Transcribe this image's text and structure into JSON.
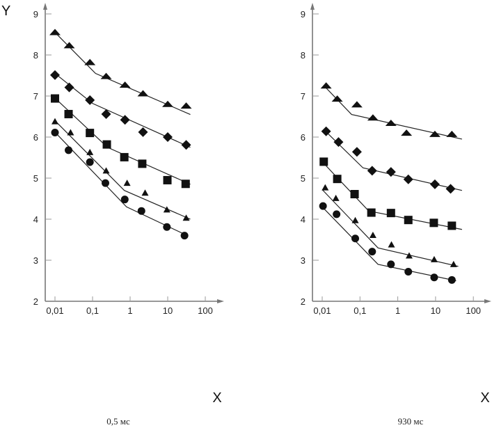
{
  "chart_data": [
    {
      "type": "scatter",
      "title": "0,5  мс",
      "xlabel": "X",
      "ylabel": "Y",
      "xscale": "log",
      "xlim": [
        0.01,
        100
      ],
      "ylim": [
        2,
        9
      ],
      "xticks": [
        "0,01",
        "0,1",
        "1",
        "10",
        "100"
      ],
      "xtick_values": [
        0.01,
        0.1,
        1,
        10,
        100
      ],
      "yticks": [
        "2",
        "3",
        "4",
        "5",
        "6",
        "7",
        "8",
        "9"
      ],
      "grid": false,
      "series": [
        {
          "name": "triangles-large",
          "marker": "triangle",
          "x": [
            0.01,
            0.024,
            0.085,
            0.23,
            0.73,
            2.2,
            10,
            31
          ],
          "y": [
            8.55,
            8.23,
            7.82,
            7.48,
            7.27,
            7.06,
            6.8,
            6.76
          ],
          "fit": [
            [
              0.01,
              8.55
            ],
            [
              0.12,
              7.55
            ],
            [
              40,
              6.55
            ]
          ]
        },
        {
          "name": "diamonds",
          "marker": "diamond",
          "x": [
            0.01,
            0.024,
            0.085,
            0.23,
            0.73,
            2.2,
            10,
            31
          ],
          "y": [
            7.51,
            7.21,
            6.9,
            6.56,
            6.42,
            6.12,
            6.0,
            5.81
          ],
          "fit": [
            [
              0.01,
              7.55
            ],
            [
              0.1,
              6.82
            ],
            [
              40,
              5.75
            ]
          ]
        },
        {
          "name": "squares",
          "marker": "square",
          "x": [
            0.01,
            0.023,
            0.085,
            0.24,
            0.7,
            2.1,
            9.8,
            30
          ],
          "y": [
            6.94,
            6.56,
            6.1,
            5.82,
            5.51,
            5.35,
            4.95,
            4.86
          ],
          "fit": [
            [
              0.01,
              6.95
            ],
            [
              0.25,
              5.75
            ],
            [
              40,
              4.85
            ]
          ]
        },
        {
          "name": "triangles-small",
          "marker": "triangle-small",
          "x": [
            0.01,
            0.026,
            0.085,
            0.23,
            0.83,
            2.5,
            9.5,
            31
          ],
          "y": [
            6.38,
            6.11,
            5.63,
            5.18,
            4.88,
            4.64,
            4.23,
            4.03
          ],
          "fit": [
            [
              0.01,
              6.4
            ],
            [
              0.7,
              4.7
            ],
            [
              40,
              4.0
            ]
          ]
        },
        {
          "name": "circles",
          "marker": "circle",
          "x": [
            0.01,
            0.023,
            0.085,
            0.22,
            0.72,
            2.0,
            9.5,
            28
          ],
          "y": [
            6.11,
            5.68,
            5.39,
            4.88,
            4.48,
            4.2,
            3.81,
            3.6
          ],
          "fit": [
            [
              0.01,
              6.12
            ],
            [
              0.8,
              4.3
            ],
            [
              30,
              3.62
            ]
          ]
        }
      ]
    },
    {
      "type": "scatter",
      "title": "930  мс",
      "xlabel": "X",
      "ylabel": "",
      "xscale": "log",
      "xlim": [
        0.01,
        100
      ],
      "ylim": [
        2,
        9
      ],
      "xticks": [
        "0,01",
        "0,1",
        "1",
        "10",
        "100"
      ],
      "xtick_values": [
        0.01,
        0.1,
        1,
        10,
        100
      ],
      "yticks": [
        "2",
        "3",
        "4",
        "5",
        "6",
        "7",
        "8",
        "9"
      ],
      "grid": false,
      "series": [
        {
          "name": "triangles-large",
          "marker": "triangle",
          "x": [
            0.0127,
            0.025,
            0.083,
            0.22,
            0.66,
            1.7,
            9.6,
            27
          ],
          "y": [
            7.25,
            6.93,
            6.79,
            6.47,
            6.34,
            6.1,
            6.07,
            6.07
          ],
          "fit": [
            [
              0.012,
              7.22
            ],
            [
              0.06,
              6.55
            ],
            [
              50,
              5.95
            ]
          ]
        },
        {
          "name": "diamonds",
          "marker": "diamond",
          "x": [
            0.0127,
            0.027,
            0.083,
            0.21,
            0.66,
            1.9,
            9.6,
            25
          ],
          "y": [
            6.14,
            5.88,
            5.64,
            5.18,
            5.15,
            4.97,
            4.85,
            4.74
          ],
          "fit": [
            [
              0.012,
              6.15
            ],
            [
              0.12,
              5.25
            ],
            [
              50,
              4.7
            ]
          ]
        },
        {
          "name": "squares",
          "marker": "square",
          "x": [
            0.011,
            0.025,
            0.072,
            0.2,
            0.66,
            1.9,
            9,
            27
          ],
          "y": [
            5.4,
            4.98,
            4.61,
            4.16,
            4.15,
            3.98,
            3.91,
            3.84
          ],
          "fit": [
            [
              0.01,
              5.4
            ],
            [
              0.17,
              4.2
            ],
            [
              50,
              3.75
            ]
          ]
        },
        {
          "name": "triangles-small",
          "marker": "triangle-small",
          "x": [
            0.012,
            0.023,
            0.075,
            0.22,
            0.68,
            2.0,
            9.2,
            30
          ],
          "y": [
            4.77,
            4.51,
            3.97,
            3.61,
            3.38,
            3.11,
            3.02,
            2.9
          ],
          "fit": [
            [
              0.01,
              4.72
            ],
            [
              0.3,
              3.3
            ],
            [
              40,
              2.85
            ]
          ]
        },
        {
          "name": "circles",
          "marker": "circle",
          "x": [
            0.0105,
            0.024,
            0.075,
            0.21,
            0.66,
            1.9,
            9.2,
            27
          ],
          "y": [
            4.32,
            4.12,
            3.53,
            3.21,
            2.9,
            2.72,
            2.58,
            2.52
          ],
          "fit": [
            [
              0.01,
              4.3
            ],
            [
              0.3,
              2.9
            ],
            [
              35,
              2.5
            ]
          ]
        }
      ]
    }
  ]
}
